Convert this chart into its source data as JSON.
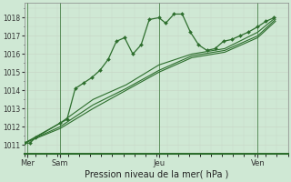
{
  "background_color": "#cfe8d4",
  "grid_color": "#c8d8c8",
  "line_color": "#2d6e2d",
  "title": "Pression niveau de la mer( hPa )",
  "ylim": [
    1010.5,
    1018.8
  ],
  "yticks": [
    1011,
    1012,
    1013,
    1014,
    1015,
    1016,
    1017,
    1018
  ],
  "xlabel_ticks_pos": [
    2,
    26,
    98,
    170
  ],
  "xlabel_labels": [
    "Mer",
    "Sam",
    "Jeu",
    "Ven"
  ],
  "vlines_x": [
    2,
    26,
    98,
    170
  ],
  "total_hours": 192,
  "series1_x": [
    0,
    4,
    8,
    26,
    31,
    37,
    43,
    49,
    55,
    61,
    67,
    73,
    79,
    85,
    91,
    98,
    103,
    109,
    115,
    121,
    127,
    133,
    139,
    145,
    151,
    157,
    163,
    170,
    176,
    182
  ],
  "series1_y": [
    1011.1,
    1011.1,
    1011.4,
    1012.2,
    1012.4,
    1014.1,
    1014.4,
    1014.7,
    1015.1,
    1015.7,
    1016.7,
    1016.9,
    1016.0,
    1016.5,
    1017.9,
    1018.0,
    1017.7,
    1018.2,
    1018.2,
    1017.2,
    1016.5,
    1016.2,
    1016.3,
    1016.7,
    1016.8,
    1017.0,
    1017.2,
    1017.5,
    1017.8,
    1018.0
  ],
  "series2_x": [
    0,
    26,
    50,
    74,
    98,
    122,
    146,
    170,
    183
  ],
  "series2_y": [
    1011.1,
    1012.0,
    1013.2,
    1014.1,
    1015.1,
    1015.9,
    1016.2,
    1017.0,
    1017.9
  ],
  "series3_x": [
    0,
    26,
    50,
    74,
    98,
    122,
    146,
    170,
    183
  ],
  "series3_y": [
    1011.1,
    1012.2,
    1013.5,
    1014.3,
    1015.4,
    1016.0,
    1016.3,
    1017.2,
    1018.0
  ],
  "series4_x": [
    0,
    26,
    50,
    74,
    98,
    122,
    146,
    170,
    183
  ],
  "series4_y": [
    1011.1,
    1011.9,
    1013.0,
    1014.0,
    1015.0,
    1015.8,
    1016.1,
    1016.9,
    1017.8
  ],
  "figsize": [
    3.2,
    2.0
  ],
  "dpi": 100
}
